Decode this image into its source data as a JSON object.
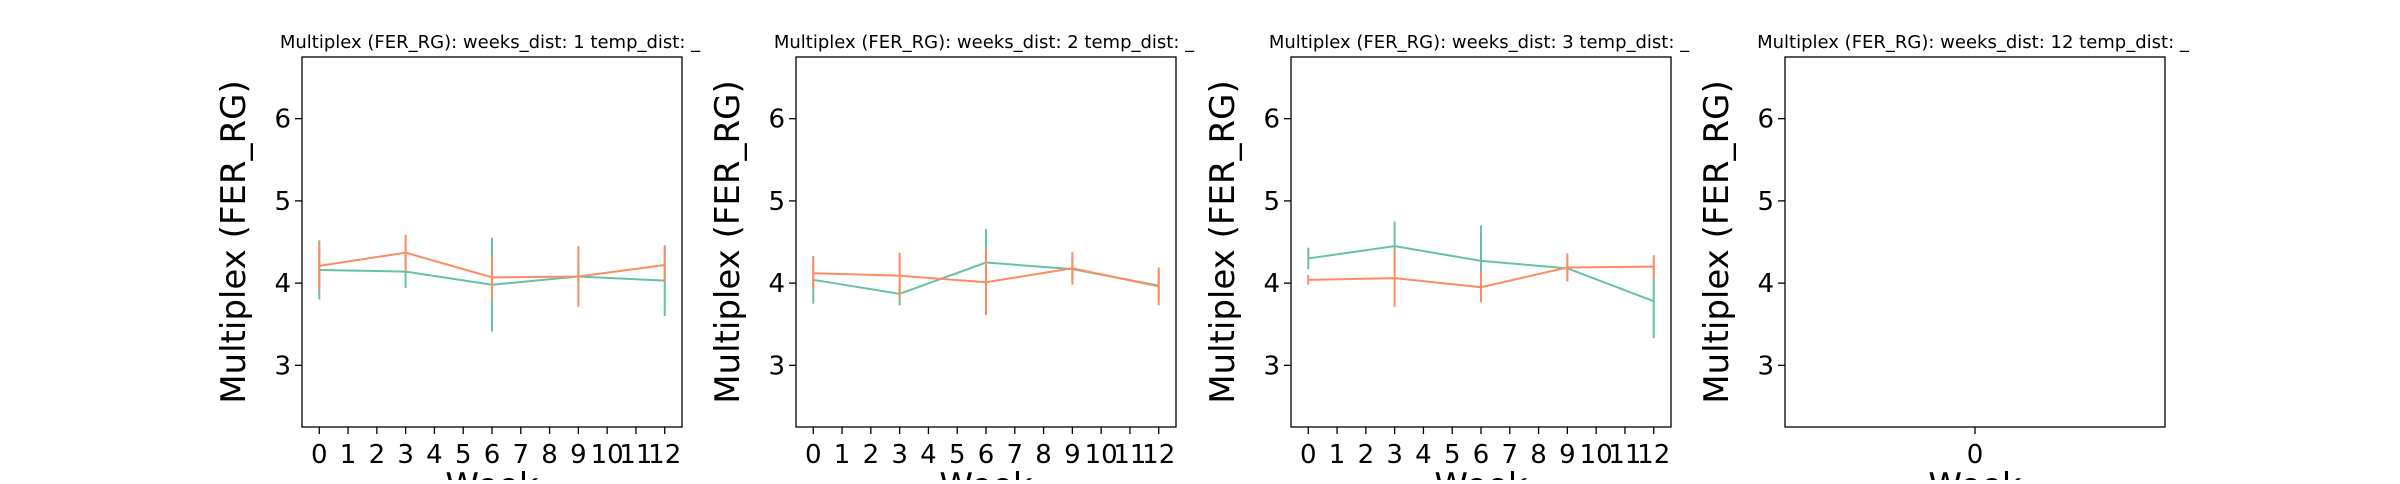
{
  "colors": {
    "series_a": "#66c2a5",
    "series_b": "#fc8d62",
    "axes": "#000000",
    "background": "#ffffff"
  },
  "chart_data": [
    {
      "type": "line",
      "title": "Multiplex (FER_RG):  weeks_dist: 1  temp_dist: _",
      "xlabel": "Week",
      "ylabel": "Multiplex (FER_RG)",
      "x_ticks": [
        "0",
        "1",
        "2",
        "3",
        "4",
        "5",
        "6",
        "7",
        "8",
        "9",
        "10",
        "11",
        "12"
      ],
      "y_ticks": [
        "3",
        "4",
        "5",
        "6"
      ],
      "xlim": [
        -0.6,
        12.6
      ],
      "ylim": [
        2.25,
        6.75
      ],
      "grid": false,
      "series": [
        {
          "color": "#66c2a5",
          "x": [
            0,
            3,
            6,
            9,
            12
          ],
          "y": [
            4.16,
            4.14,
            3.98,
            4.08,
            4.03
          ],
          "error": [
            0.36,
            0.2,
            0.57,
            0.09,
            0.43
          ]
        },
        {
          "color": "#fc8d62",
          "x": [
            0,
            3,
            6,
            9,
            12
          ],
          "y": [
            4.21,
            4.37,
            4.07,
            4.08,
            4.22
          ],
          "error": [
            0.29,
            0.22,
            0.26,
            0.37,
            0.22
          ]
        }
      ]
    },
    {
      "type": "line",
      "title": "Multiplex (FER_RG):  weeks_dist: 2  temp_dist: _",
      "xlabel": "Week",
      "ylabel": "Multiplex (FER_RG)",
      "x_ticks": [
        "0",
        "1",
        "2",
        "3",
        "4",
        "5",
        "6",
        "7",
        "8",
        "9",
        "10",
        "11",
        "12"
      ],
      "y_ticks": [
        "3",
        "4",
        "5",
        "6"
      ],
      "xlim": [
        -0.6,
        12.6
      ],
      "ylim": [
        2.25,
        6.75
      ],
      "grid": false,
      "series": [
        {
          "color": "#66c2a5",
          "x": [
            0,
            3,
            6,
            9,
            12
          ],
          "y": [
            4.04,
            3.87,
            4.25,
            4.17,
            3.97
          ],
          "error": [
            0.29,
            0.14,
            0.41,
            0.14,
            0.17
          ]
        },
        {
          "color": "#fc8d62",
          "x": [
            0,
            3,
            6,
            9,
            12
          ],
          "y": [
            4.12,
            4.09,
            4.01,
            4.18,
            3.96
          ],
          "error": [
            0.19,
            0.28,
            0.4,
            0.2,
            0.23
          ]
        }
      ]
    },
    {
      "type": "line",
      "title": "Multiplex (FER_RG):  weeks_dist: 3  temp_dist: _",
      "xlabel": "Week",
      "ylabel": "Multiplex (FER_RG)",
      "x_ticks": [
        "0",
        "1",
        "2",
        "3",
        "4",
        "5",
        "6",
        "7",
        "8",
        "9",
        "10",
        "11",
        "12"
      ],
      "y_ticks": [
        "3",
        "4",
        "5",
        "6"
      ],
      "xlim": [
        -0.6,
        12.6
      ],
      "ylim": [
        2.25,
        6.75
      ],
      "grid": false,
      "series": [
        {
          "color": "#66c2a5",
          "x": [
            0,
            3,
            6,
            9,
            12
          ],
          "y": [
            4.3,
            4.45,
            4.27,
            4.18,
            3.78
          ],
          "error": [
            0.13,
            0.3,
            0.43,
            0.12,
            0.45
          ]
        },
        {
          "color": "#fc8d62",
          "x": [
            0,
            3,
            6,
            9,
            12
          ],
          "y": [
            4.04,
            4.06,
            3.95,
            4.19,
            4.2
          ],
          "error": [
            0.06,
            0.35,
            0.18,
            0.17,
            0.14
          ]
        }
      ]
    },
    {
      "type": "line",
      "title": "Multiplex (FER_RG):  weeks_dist: 12  temp_dist: _",
      "xlabel": "Week",
      "ylabel": "Multiplex (FER_RG)",
      "x_ticks": [
        "0"
      ],
      "y_ticks": [
        "3",
        "4",
        "5",
        "6"
      ],
      "xlim": [
        -0.6,
        0.6
      ],
      "ylim": [
        2.25,
        6.75
      ],
      "grid": false,
      "series": []
    }
  ]
}
